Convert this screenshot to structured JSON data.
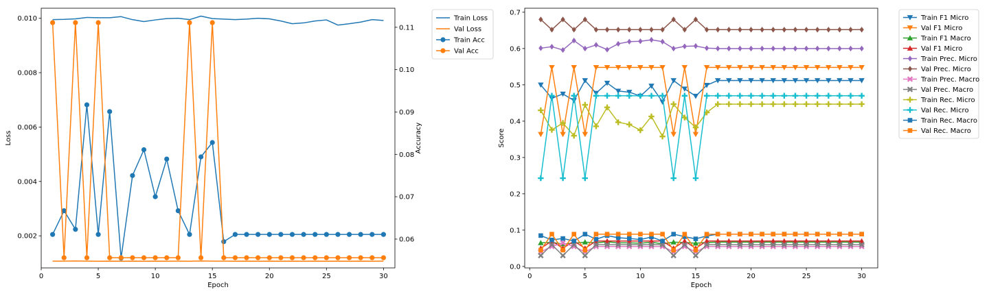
{
  "chart_data": [
    {
      "type": "line",
      "xlabel": "Epoch",
      "ylabel": "Loss",
      "ylabel_right": "Accuracy",
      "x": [
        1,
        2,
        3,
        4,
        5,
        6,
        7,
        8,
        9,
        10,
        11,
        12,
        13,
        14,
        15,
        16,
        17,
        18,
        19,
        20,
        21,
        22,
        23,
        24,
        25,
        26,
        27,
        28,
        29,
        30
      ],
      "xlim": [
        0.0,
        31.0
      ],
      "xticks": [
        0,
        5,
        10,
        15,
        20,
        25,
        30
      ],
      "ylim_left": [
        0.00082,
        0.01037
      ],
      "yticks_left": [
        0.002,
        0.004,
        0.006,
        0.008,
        0.01
      ],
      "ylim_right": [
        0.0532,
        0.1145
      ],
      "yticks_right": [
        0.06,
        0.07,
        0.08,
        0.09,
        0.1,
        0.11
      ],
      "grid": false,
      "legend_position": "outside top-right",
      "series": [
        {
          "name": "Train Loss",
          "axis": "left",
          "color": "#1f77b4",
          "marker": "none",
          "values": [
            0.00995,
            0.00996,
            0.00998,
            0.01003,
            0.01002,
            0.01002,
            0.01006,
            0.00995,
            0.00988,
            0.00994,
            0.00999,
            0.01,
            0.00995,
            0.01008,
            0.00999,
            0.00997,
            0.00995,
            0.00997,
            0.01,
            0.00998,
            0.0099,
            0.0098,
            0.00983,
            0.0099,
            0.00994,
            0.00975,
            0.0098,
            0.00986,
            0.00995,
            0.00992
          ]
        },
        {
          "name": "Val Loss",
          "axis": "left",
          "color": "#ff7f0e",
          "marker": "none",
          "values": [
            0.00107,
            0.00107,
            0.001075,
            0.00107,
            0.001065,
            0.00107,
            0.001065,
            0.00107,
            0.001065,
            0.00107,
            0.001065,
            0.00107,
            0.001065,
            0.001075,
            0.00107,
            0.00107,
            0.001065,
            0.00107,
            0.001065,
            0.00107,
            0.001065,
            0.00107,
            0.001065,
            0.00107,
            0.001065,
            0.00107,
            0.001065,
            0.00107,
            0.001065,
            0.00107
          ]
        },
        {
          "name": "Train Acc",
          "axis": "right",
          "color": "#1f77b4",
          "marker": "circle",
          "values": [
            0.0611,
            0.0667,
            0.0623,
            0.0917,
            0.0611,
            0.0901,
            0.0555,
            0.075,
            0.0811,
            0.07,
            0.0789,
            0.0667,
            0.0611,
            0.0794,
            0.0828,
            0.0594,
            0.0611,
            0.0611,
            0.0611,
            0.0611,
            0.0611,
            0.0611,
            0.0611,
            0.0611,
            0.0611,
            0.0611,
            0.0611,
            0.0611,
            0.0611,
            0.0611
          ]
        },
        {
          "name": "Val Acc",
          "axis": "right",
          "color": "#ff7f0e",
          "marker": "circle",
          "values": [
            0.1111,
            0.0556,
            0.1111,
            0.0556,
            0.1111,
            0.0556,
            0.0556,
            0.0556,
            0.0556,
            0.0556,
            0.0556,
            0.0556,
            0.1111,
            0.0556,
            0.1111,
            0.0556,
            0.0556,
            0.0556,
            0.0556,
            0.0556,
            0.0556,
            0.0556,
            0.0556,
            0.0556,
            0.0556,
            0.0556,
            0.0556,
            0.0556,
            0.0556,
            0.0556
          ]
        }
      ]
    },
    {
      "type": "line",
      "xlabel": "Epoch",
      "ylabel": "Score",
      "x": [
        1,
        2,
        3,
        4,
        5,
        6,
        7,
        8,
        9,
        10,
        11,
        12,
        13,
        14,
        15,
        16,
        17,
        18,
        19,
        20,
        21,
        22,
        23,
        24,
        25,
        26,
        27,
        28,
        29,
        30
      ],
      "xlim": [
        -0.45,
        31.45
      ],
      "xticks": [
        0,
        5,
        10,
        15,
        20,
        25,
        30
      ],
      "ylim": [
        -0.004,
        0.711
      ],
      "yticks": [
        0.0,
        0.1,
        0.2,
        0.3,
        0.4,
        0.5,
        0.6,
        0.7
      ],
      "grid": false,
      "legend_position": "outside top-right",
      "series": [
        {
          "name": "Train F1 Micro",
          "color": "#1f77b4",
          "marker": "tri-down",
          "values": [
            0.5,
            0.463,
            0.475,
            0.457,
            0.512,
            0.477,
            0.505,
            0.483,
            0.48,
            0.469,
            0.497,
            0.453,
            0.512,
            0.489,
            0.469,
            0.499,
            0.512,
            0.512,
            0.512,
            0.512,
            0.512,
            0.512,
            0.512,
            0.512,
            0.512,
            0.512,
            0.512,
            0.512,
            0.512,
            0.512
          ]
        },
        {
          "name": "Val F1 Micro",
          "color": "#ff7f0e",
          "marker": "tri-down",
          "values": [
            0.364,
            0.548,
            0.364,
            0.548,
            0.364,
            0.548,
            0.548,
            0.548,
            0.548,
            0.548,
            0.548,
            0.548,
            0.364,
            0.548,
            0.364,
            0.548,
            0.548,
            0.548,
            0.548,
            0.548,
            0.548,
            0.548,
            0.548,
            0.548,
            0.548,
            0.548,
            0.548,
            0.548,
            0.548,
            0.548
          ]
        },
        {
          "name": "Train F1 Macro",
          "color": "#2ca02c",
          "marker": "tri-up",
          "values": [
            0.065,
            0.066,
            0.062,
            0.064,
            0.067,
            0.065,
            0.068,
            0.065,
            0.065,
            0.064,
            0.067,
            0.062,
            0.067,
            0.066,
            0.064,
            0.066,
            0.067,
            0.067,
            0.067,
            0.067,
            0.067,
            0.067,
            0.067,
            0.067,
            0.067,
            0.067,
            0.067,
            0.067,
            0.067,
            0.067
          ]
        },
        {
          "name": "Val F1 Micro",
          "color": "#d62728",
          "marker": "tri-up",
          "values": [
            0.05,
            0.07,
            0.05,
            0.07,
            0.05,
            0.07,
            0.07,
            0.07,
            0.07,
            0.07,
            0.07,
            0.07,
            0.05,
            0.07,
            0.05,
            0.07,
            0.07,
            0.07,
            0.07,
            0.07,
            0.07,
            0.07,
            0.07,
            0.07,
            0.07,
            0.07,
            0.07,
            0.07,
            0.07,
            0.07
          ]
        },
        {
          "name": "Train Prec. Micro",
          "color": "#9467bd",
          "marker": "diamond",
          "values": [
            0.601,
            0.605,
            0.596,
            0.622,
            0.6,
            0.61,
            0.597,
            0.613,
            0.619,
            0.62,
            0.624,
            0.619,
            0.6,
            0.606,
            0.607,
            0.601,
            0.6,
            0.6,
            0.6,
            0.6,
            0.6,
            0.6,
            0.6,
            0.6,
            0.6,
            0.6,
            0.6,
            0.6,
            0.6,
            0.6
          ]
        },
        {
          "name": "Val Prec. Micro",
          "color": "#8c564b",
          "marker": "diamond",
          "values": [
            0.68,
            0.652,
            0.68,
            0.652,
            0.68,
            0.652,
            0.652,
            0.652,
            0.652,
            0.652,
            0.652,
            0.652,
            0.68,
            0.652,
            0.68,
            0.652,
            0.652,
            0.652,
            0.652,
            0.652,
            0.652,
            0.652,
            0.652,
            0.652,
            0.652,
            0.652,
            0.652,
            0.652,
            0.652,
            0.652
          ]
        },
        {
          "name": "Train Prec. Macro",
          "color": "#e377c2",
          "marker": "x",
          "values": [
            0.04,
            0.055,
            0.065,
            0.055,
            0.04,
            0.055,
            0.055,
            0.055,
            0.055,
            0.055,
            0.055,
            0.055,
            0.04,
            0.055,
            0.04,
            0.055,
            0.055,
            0.055,
            0.055,
            0.055,
            0.055,
            0.055,
            0.055,
            0.055,
            0.055,
            0.055,
            0.055,
            0.055,
            0.055,
            0.055
          ]
        },
        {
          "name": "Val Prec. Macro",
          "color": "#7f7f7f",
          "marker": "x",
          "values": [
            0.03,
            0.06,
            0.03,
            0.06,
            0.03,
            0.06,
            0.06,
            0.06,
            0.06,
            0.06,
            0.06,
            0.06,
            0.03,
            0.06,
            0.03,
            0.06,
            0.06,
            0.06,
            0.06,
            0.06,
            0.06,
            0.06,
            0.06,
            0.06,
            0.06,
            0.06,
            0.06,
            0.06,
            0.06,
            0.06
          ]
        },
        {
          "name": "Train Rec. Micro",
          "color": "#bcbd22",
          "marker": "plus",
          "values": [
            0.43,
            0.376,
            0.395,
            0.36,
            0.445,
            0.386,
            0.438,
            0.397,
            0.391,
            0.375,
            0.413,
            0.358,
            0.447,
            0.41,
            0.383,
            0.424,
            0.447,
            0.447,
            0.447,
            0.447,
            0.447,
            0.447,
            0.447,
            0.447,
            0.447,
            0.447,
            0.447,
            0.447,
            0.447,
            0.447
          ]
        },
        {
          "name": "Val Rec. Micro",
          "color": "#17becf",
          "marker": "plus",
          "values": [
            0.243,
            0.47,
            0.243,
            0.47,
            0.243,
            0.47,
            0.47,
            0.47,
            0.47,
            0.47,
            0.47,
            0.47,
            0.243,
            0.47,
            0.243,
            0.47,
            0.47,
            0.47,
            0.47,
            0.47,
            0.47,
            0.47,
            0.47,
            0.47,
            0.47,
            0.47,
            0.47,
            0.47,
            0.47,
            0.47
          ]
        },
        {
          "name": "Train Rec. Macro",
          "color": "#1f77b4",
          "marker": "square",
          "values": [
            0.085,
            0.073,
            0.077,
            0.07,
            0.089,
            0.075,
            0.085,
            0.079,
            0.077,
            0.074,
            0.081,
            0.07,
            0.089,
            0.082,
            0.076,
            0.084,
            0.089,
            0.089,
            0.089,
            0.089,
            0.089,
            0.089,
            0.089,
            0.089,
            0.089,
            0.089,
            0.089,
            0.089,
            0.089,
            0.089
          ]
        },
        {
          "name": "Val Rec. Macro",
          "color": "#ff7f0e",
          "marker": "square",
          "values": [
            0.045,
            0.089,
            0.045,
            0.089,
            0.045,
            0.089,
            0.089,
            0.089,
            0.089,
            0.089,
            0.089,
            0.089,
            0.045,
            0.089,
            0.045,
            0.089,
            0.089,
            0.089,
            0.089,
            0.089,
            0.089,
            0.089,
            0.089,
            0.089,
            0.089,
            0.089,
            0.089,
            0.089,
            0.089,
            0.089
          ]
        }
      ]
    }
  ]
}
